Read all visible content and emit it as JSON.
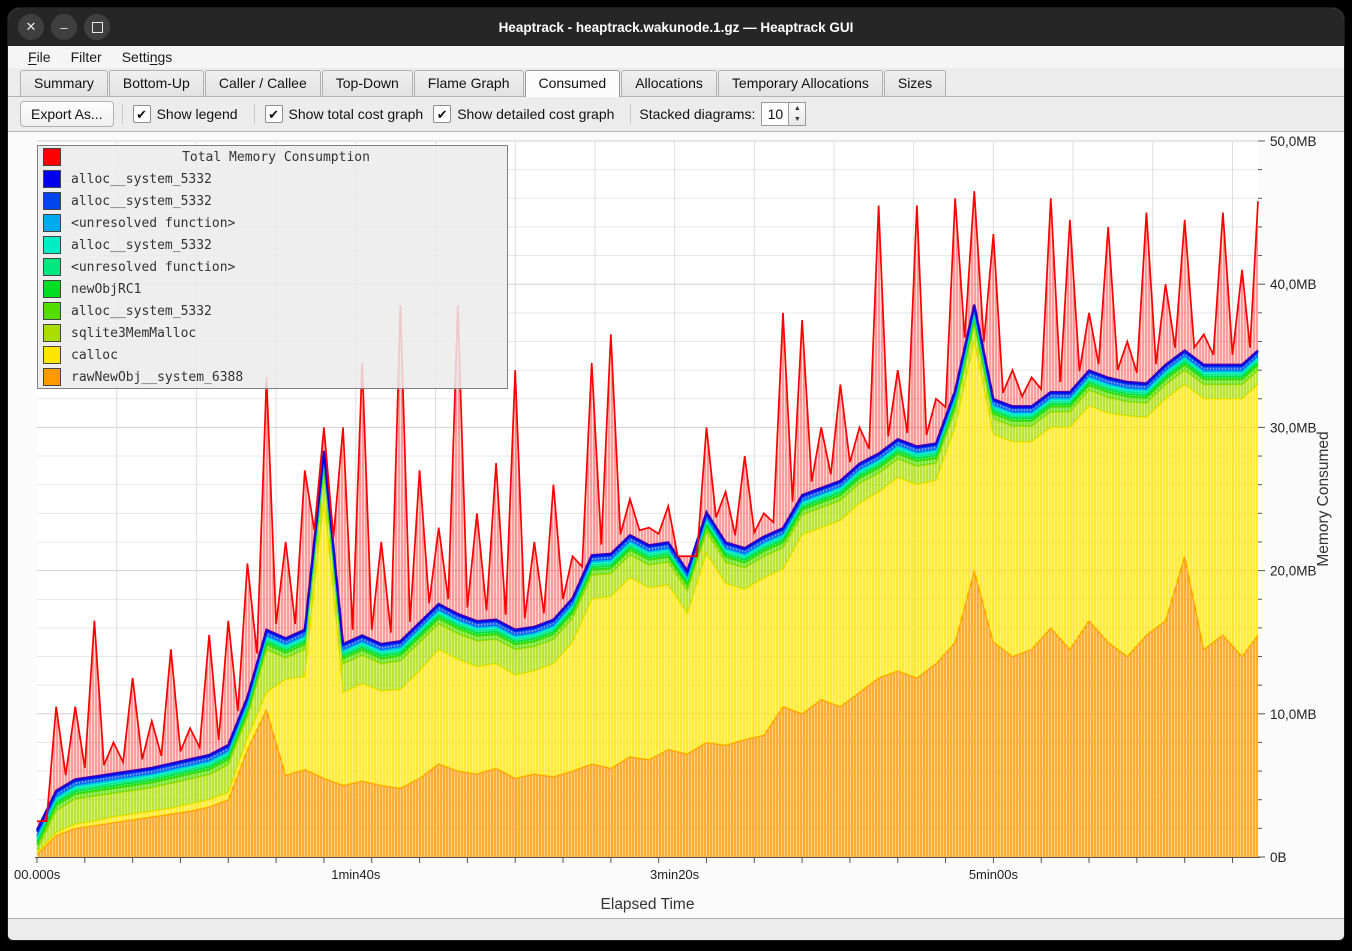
{
  "window": {
    "title": "Heaptrack - heaptrack.wakunode.1.gz — Heaptrack GUI"
  },
  "menu": {
    "items": [
      {
        "label": "File",
        "mnemonic_index": 0
      },
      {
        "label": "Filter",
        "mnemonic_index": -1
      },
      {
        "label": "Settings",
        "mnemonic_index": 5
      }
    ]
  },
  "tabs": {
    "items": [
      {
        "label": "Summary",
        "active": false
      },
      {
        "label": "Bottom-Up",
        "active": false
      },
      {
        "label": "Caller / Callee",
        "active": false
      },
      {
        "label": "Top-Down",
        "active": false
      },
      {
        "label": "Flame Graph",
        "active": false
      },
      {
        "label": "Consumed",
        "active": true
      },
      {
        "label": "Allocations",
        "active": false
      },
      {
        "label": "Temporary Allocations",
        "active": false
      },
      {
        "label": "Sizes",
        "active": false
      }
    ]
  },
  "toolbar": {
    "export_button": "Export As...",
    "checkboxes": [
      {
        "label": "Show legend",
        "checked": true
      },
      {
        "label": "Show total cost graph",
        "checked": true
      },
      {
        "label": "Show detailed cost graph",
        "checked": true
      }
    ],
    "stacked_diagrams_label": "Stacked diagrams:",
    "stacked_diagrams_value": "10"
  },
  "legend": {
    "items": [
      {
        "label": "Total Memory Consumption",
        "color": "#FF0000",
        "is_title": true
      },
      {
        "label": "alloc__system_5332",
        "color": "#0000EE",
        "is_title": false
      },
      {
        "label": "alloc__system_5332",
        "color": "#0044EE",
        "is_title": false
      },
      {
        "label": "<unresolved function>",
        "color": "#00AAEE",
        "is_title": false
      },
      {
        "label": "alloc__system_5332",
        "color": "#00EEC4",
        "is_title": false
      },
      {
        "label": "<unresolved function>",
        "color": "#00E87E",
        "is_title": false
      },
      {
        "label": "newObjRC1",
        "color": "#00DD22",
        "is_title": false
      },
      {
        "label": "alloc__system_5332",
        "color": "#55DD00",
        "is_title": false
      },
      {
        "label": "sqlite3MemMalloc",
        "color": "#AADD00",
        "is_title": false
      },
      {
        "label": "calloc",
        "color": "#FFE500",
        "is_title": false
      },
      {
        "label": "rawNewObj__system_6388",
        "color": "#FF9900",
        "is_title": false
      }
    ]
  },
  "chart_data": {
    "type": "area",
    "stacked": true,
    "title": "",
    "xlabel": "Elapsed Time",
    "ylabel": "Memory Consumed",
    "xlim": [
      0,
      383
    ],
    "ylim": [
      0,
      50
    ],
    "grid": {
      "v_step_seconds": 25,
      "h_step_mb": 2
    },
    "x_ticks": [
      {
        "t": 0,
        "label": "00.000s"
      },
      {
        "t": 100,
        "label": "1min40s"
      },
      {
        "t": 200,
        "label": "3min20s"
      },
      {
        "t": 300,
        "label": "5min00s"
      }
    ],
    "x_minor_tick_step": 15,
    "y_ticks": [
      {
        "v": 0,
        "label": "0B"
      },
      {
        "v": 10,
        "label": "10,0MB"
      },
      {
        "v": 20,
        "label": "20,0MB"
      },
      {
        "v": 30,
        "label": "30,0MB"
      },
      {
        "v": 40,
        "label": "40,0MB"
      },
      {
        "v": 50,
        "label": "50,0MB"
      }
    ],
    "y_minor_tick_step": 2,
    "x_seconds": [
      0,
      6,
      12,
      18,
      24,
      30,
      36,
      42,
      48,
      54,
      60,
      66,
      72,
      78,
      84,
      90,
      96,
      102,
      108,
      114,
      120,
      126,
      132,
      138,
      144,
      150,
      156,
      162,
      168,
      174,
      180,
      186,
      192,
      198,
      204,
      210,
      216,
      222,
      228,
      234,
      240,
      246,
      252,
      258,
      264,
      270,
      276,
      282,
      288,
      294,
      300,
      306,
      312,
      318,
      324,
      330,
      336,
      342,
      348,
      354,
      360,
      366,
      372,
      378,
      383
    ],
    "unit": "MB",
    "total": {
      "name": "Total Memory Consumption",
      "color": "#FF0000",
      "stroke_width": 1.7,
      "values": [
        2.5,
        10.5,
        10.5,
        16.5,
        8.0,
        12.5,
        9.5,
        14.5,
        9.0,
        15.5,
        16.5,
        20.5,
        33.5,
        22.0,
        27.0,
        30.0,
        30.0,
        34.5,
        22.0,
        38.5,
        27.0,
        23.0,
        38.5,
        24.0,
        27.5,
        34.0,
        22.0,
        26.0,
        21.0,
        34.5,
        36.5,
        25.0,
        23.0,
        24.5,
        21.0,
        30.0,
        25.5,
        28.0,
        24.0,
        38.0,
        37.5,
        30.0,
        33.0,
        30.0,
        45.5,
        34.0,
        45.5,
        32.0,
        46.0,
        46.5,
        43.5,
        34.0,
        33.5,
        46.0,
        44.5,
        38.0,
        44.0,
        36.0,
        45.0,
        40.0,
        44.5,
        36.5,
        45.0,
        41.0,
        45.8
      ]
    },
    "stack": [
      {
        "name": "rawNewObj__system_6388",
        "color": "#FF9900",
        "stroke_width": 1.6,
        "values": [
          0.2,
          1.5,
          2.0,
          2.2,
          2.4,
          2.6,
          2.8,
          3.0,
          3.2,
          3.5,
          4.0,
          7.5,
          10.3,
          5.7,
          6.1,
          5.5,
          5.0,
          5.3,
          5.0,
          4.8,
          5.5,
          6.5,
          6.0,
          5.8,
          6.2,
          5.5,
          5.8,
          5.6,
          6.0,
          6.5,
          6.2,
          7.0,
          6.8,
          7.5,
          7.2,
          8.0,
          7.8,
          8.2,
          8.5,
          10.5,
          10.0,
          11.0,
          10.5,
          11.5,
          12.5,
          13.0,
          12.5,
          13.5,
          15.0,
          20.0,
          15.0,
          14.0,
          14.5,
          16.0,
          14.5,
          16.5,
          15.0,
          14.0,
          15.5,
          16.5,
          21.0,
          14.5,
          15.5,
          14.0,
          15.5
        ]
      },
      {
        "name": "calloc",
        "color": "#FFE500",
        "stroke_width": 1.6,
        "values": [
          0.1,
          0.2,
          0.3,
          0.3,
          0.4,
          0.4,
          0.4,
          0.4,
          0.5,
          0.5,
          0.5,
          0.8,
          1.2,
          6.7,
          6.5,
          19.5,
          6.5,
          6.8,
          6.6,
          6.9,
          7.5,
          8.0,
          7.8,
          7.5,
          7.3,
          7.2,
          7.2,
          7.9,
          9.0,
          11.5,
          12.0,
          12.5,
          12.0,
          11.5,
          9.8,
          13.2,
          11.3,
          10.5,
          11.0,
          9.6,
          12.5,
          12.0,
          13.0,
          13.2,
          13.0,
          13.5,
          13.5,
          12.8,
          15.0,
          16.0,
          14.5,
          15.0,
          14.5,
          14.0,
          15.5,
          15.0,
          16.0,
          16.8,
          15.2,
          15.5,
          12.0,
          17.5,
          16.5,
          18.0,
          17.5
        ]
      },
      {
        "name": "sqlite3MemMalloc",
        "color": "#AADD00",
        "stroke_width": 1.6,
        "values": [
          0.2,
          1.55,
          1.75,
          1.75,
          1.65,
          1.65,
          1.65,
          1.75,
          1.75,
          1.75,
          1.95,
          1.5,
          3.0,
          1.5,
          1.9,
          2.0,
          2.0,
          2.0,
          1.9,
          2.0,
          2.0,
          1.8,
          1.8,
          1.8,
          1.7,
          1.8,
          1.7,
          1.7,
          1.7,
          1.7,
          1.6,
          1.6,
          1.6,
          1.6,
          1.6,
          1.5,
          1.5,
          1.5,
          1.5,
          1.5,
          1.4,
          1.4,
          1.4,
          1.4,
          1.3,
          1.3,
          1.3,
          1.2,
          1.2,
          1.2,
          1.1,
          1.1,
          1.1,
          1.1,
          1.1,
          1.1,
          1.1,
          1.0,
          1.0,
          1.0,
          1.0,
          1.0,
          1.0,
          1.0,
          1.0
        ]
      },
      {
        "name": "alloc__system_5332",
        "color": "#55DD00",
        "stroke_width": 2.0,
        "value": 0.35
      },
      {
        "name": "newObjRC1",
        "color": "#00DD22",
        "stroke_width": 1.6,
        "value": 0.2
      },
      {
        "name": "<unresolved function>",
        "color": "#00E87E",
        "stroke_width": 1.6,
        "value": 0.15
      },
      {
        "name": "alloc__system_5332",
        "color": "#00EEC4",
        "stroke_width": 1.8,
        "value": 0.15
      },
      {
        "name": "<unresolved function>",
        "color": "#00AAEE",
        "stroke_width": 1.8,
        "value": 0.12
      },
      {
        "name": "alloc__system_5332",
        "color": "#0044EE",
        "stroke_width": 2.2,
        "value": 0.28
      },
      {
        "name": "alloc__system_5332",
        "color": "#0000EE",
        "stroke_width": 2.4,
        "value": 0.12
      }
    ]
  }
}
